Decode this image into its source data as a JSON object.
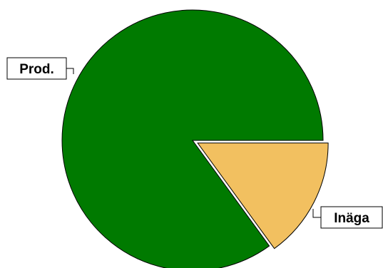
{
  "chart_data": {
    "type": "pie",
    "categories": [
      "Prod.",
      "Inäga"
    ],
    "values": [
      85,
      15
    ],
    "title": "",
    "legend": "none",
    "exploded": [
      "Inäga"
    ],
    "colors": {
      "Prod.": "#007a00",
      "Inäga": "#f2c060"
    },
    "outline_color": "#000000",
    "label_box_border": "#000000",
    "label_box_fill": "#ffffff"
  }
}
